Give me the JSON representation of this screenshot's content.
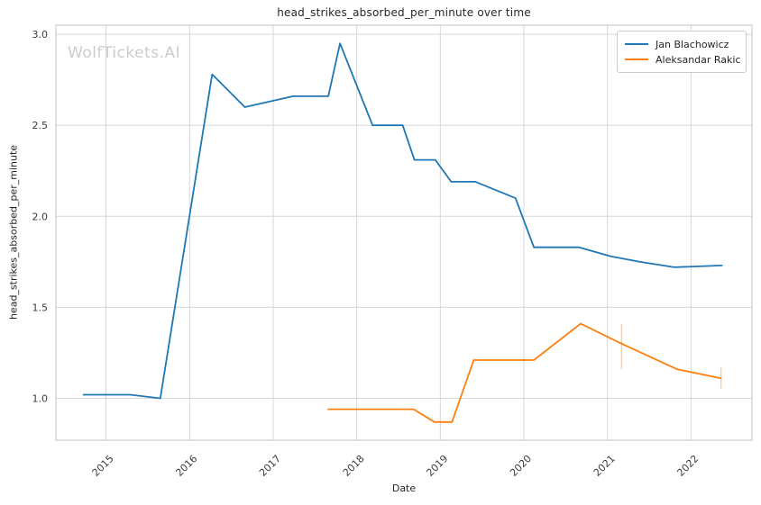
{
  "watermark": {
    "text": "WolfTickets.AI",
    "color": "#cccccc"
  },
  "chart_data": {
    "type": "line",
    "title": "head_strikes_absorbed_per_minute over time",
    "xlabel": "Date",
    "ylabel": "head_strikes_absorbed_per_minute",
    "x_ticks": [
      2015,
      2016,
      2017,
      2018,
      2019,
      2020,
      2021,
      2022
    ],
    "y_ticks": [
      1.0,
      1.5,
      2.0,
      2.5,
      3.0
    ],
    "xlim": [
      2014.4,
      2022.73
    ],
    "ylim": [
      0.77,
      3.05
    ],
    "grid": true,
    "legend_position": "upper right",
    "colors": {
      "grid": "#d7d7d7",
      "border": "#cccccc",
      "tick_text": "#3b3b3b"
    },
    "series": [
      {
        "name": "Jan Blachowicz",
        "color": "#1f77b4",
        "x": [
          2014.73,
          2015.29,
          2015.65,
          2016.27,
          2016.66,
          2017.24,
          2017.66,
          2017.8,
          2018.19,
          2018.55,
          2018.69,
          2018.94,
          2019.13,
          2019.42,
          2019.9,
          2020.12,
          2020.66,
          2021.04,
          2021.39,
          2021.8,
          2022.37
        ],
        "y": [
          1.02,
          1.02,
          1.0,
          2.78,
          2.6,
          2.66,
          2.66,
          2.95,
          2.5,
          2.5,
          2.31,
          2.31,
          2.19,
          2.19,
          2.1,
          1.83,
          1.83,
          1.78,
          1.75,
          1.72,
          1.73
        ],
        "error_bars": []
      },
      {
        "name": "Aleksandar Rakic",
        "color": "#ff7f0e",
        "x": [
          2017.66,
          2018.68,
          2018.93,
          2019.14,
          2019.4,
          2020.12,
          2020.68,
          2021.17,
          2021.83,
          2022.36
        ],
        "y": [
          0.94,
          0.94,
          0.87,
          0.87,
          1.21,
          1.21,
          1.41,
          1.3,
          1.16,
          1.11
        ],
        "error_bars": [
          {
            "x": 2021.17,
            "y_low": 1.16,
            "y_high": 1.41
          },
          {
            "x": 2022.36,
            "y_low": 1.05,
            "y_high": 1.17
          }
        ]
      }
    ]
  }
}
